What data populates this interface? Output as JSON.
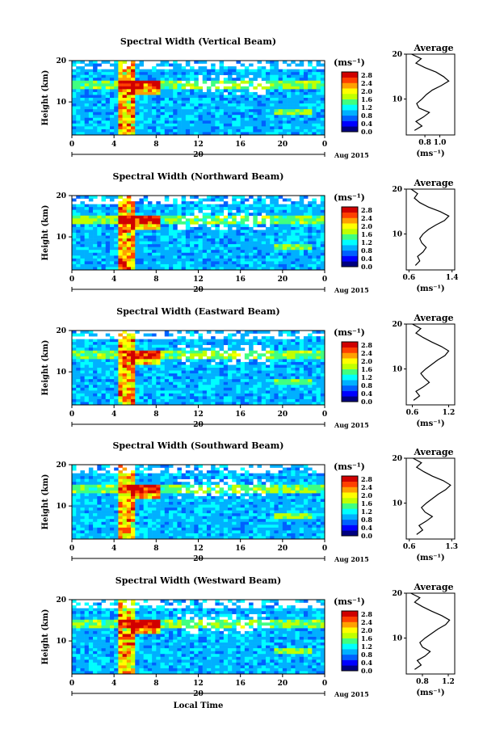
{
  "chart_data": [
    {
      "type": "heatmap",
      "title": "Spectral Width (Vertical Beam)",
      "ylabel": "Height (km)",
      "yticks": [
        "20",
        "10"
      ],
      "ylim": [
        2,
        20
      ],
      "xticks": [
        "0",
        "4",
        "8",
        "12",
        "16",
        "20",
        "0"
      ],
      "xlim": [
        0,
        24
      ],
      "date_day": "20",
      "date_label": "Aug 2015",
      "colorbar_unit": "(ms⁻¹)",
      "colorbar_ticks": [
        "2.8",
        "2.4",
        "2.0",
        "1.6",
        "1.2",
        "0.8",
        "0.4",
        "0.0"
      ],
      "profile": {
        "title": "Average",
        "xticks": [
          "0.8",
          "1.0"
        ],
        "xlim": [
          0.55,
          1.2
        ],
        "xlabel": "(ms⁻¹)",
        "yticks": [
          "20",
          "10"
        ],
        "height_km": [
          3,
          4,
          5,
          6,
          7,
          8,
          9,
          10,
          11,
          12,
          13,
          14,
          15,
          16,
          17,
          18,
          19,
          20
        ],
        "values": [
          0.66,
          0.76,
          0.68,
          0.78,
          0.86,
          0.72,
          0.69,
          0.76,
          0.82,
          0.9,
          1.02,
          1.12,
          1.05,
          0.95,
          0.8,
          0.68,
          0.75,
          0.62
        ]
      }
    },
    {
      "type": "heatmap",
      "title": "Spectral Width (Northward Beam)",
      "ylabel": "Height (km)",
      "yticks": [
        "20",
        "10"
      ],
      "ylim": [
        2,
        20
      ],
      "xticks": [
        "0",
        "4",
        "8",
        "12",
        "16",
        "20",
        "0"
      ],
      "xlim": [
        0,
        24
      ],
      "date_day": "20",
      "date_label": "Aug 2015",
      "colorbar_unit": "(ms⁻¹)",
      "colorbar_ticks": [
        "2.8",
        "2.4",
        "2.0",
        "1.6",
        "1.2",
        "0.8",
        "0.4",
        "0.0"
      ],
      "profile": {
        "title": "Average",
        "xticks": [
          "0.6",
          "1.4"
        ],
        "xlim": [
          0.55,
          1.45
        ],
        "xlabel": "(ms⁻¹)",
        "yticks": [
          "20",
          "10"
        ],
        "height_km": [
          3,
          4,
          5,
          6,
          7,
          8,
          9,
          10,
          11,
          12,
          13,
          14,
          15,
          16,
          17,
          18,
          19,
          20
        ],
        "values": [
          0.72,
          0.8,
          0.76,
          0.86,
          0.92,
          0.84,
          0.8,
          0.86,
          0.96,
          1.1,
          1.26,
          1.34,
          1.18,
          0.96,
          0.8,
          0.7,
          0.76,
          0.64
        ]
      }
    },
    {
      "type": "heatmap",
      "title": "Spectral Width (Eastward Beam)",
      "ylabel": "Height (km)",
      "yticks": [
        "20",
        "10"
      ],
      "ylim": [
        2,
        20
      ],
      "xticks": [
        "0",
        "4",
        "8",
        "12",
        "16",
        "20",
        "0"
      ],
      "xlim": [
        0,
        24
      ],
      "date_day": "20",
      "date_label": "Aug 2015",
      "colorbar_unit": "(ms⁻¹)",
      "colorbar_ticks": [
        "2.8",
        "2.4",
        "2.0",
        "1.6",
        "1.2",
        "0.8",
        "0.4",
        "0.0"
      ],
      "profile": {
        "title": "Average",
        "xticks": [
          "0.6",
          "1.2"
        ],
        "xlim": [
          0.5,
          1.3
        ],
        "xlabel": "(ms⁻¹)",
        "yticks": [
          "20",
          "10"
        ],
        "height_km": [
          3,
          4,
          5,
          6,
          7,
          8,
          9,
          10,
          11,
          12,
          13,
          14,
          15,
          16,
          17,
          18,
          19,
          20
        ],
        "values": [
          0.62,
          0.72,
          0.66,
          0.78,
          0.88,
          0.8,
          0.74,
          0.82,
          0.92,
          1.02,
          1.14,
          1.2,
          1.08,
          0.92,
          0.78,
          0.66,
          0.74,
          0.6
        ]
      }
    },
    {
      "type": "heatmap",
      "title": "Spectral Width (Southward Beam)",
      "ylabel": "Height (km)",
      "yticks": [
        "20",
        "10"
      ],
      "ylim": [
        2,
        20
      ],
      "xticks": [
        "0",
        "4",
        "8",
        "12",
        "16",
        "20",
        "0"
      ],
      "xlim": [
        0,
        24
      ],
      "date_day": "20",
      "date_label": "Aug 2015",
      "colorbar_unit": "(ms⁻¹)",
      "colorbar_ticks": [
        "2.8",
        "2.4",
        "2.0",
        "1.6",
        "1.2",
        "0.8",
        "0.4",
        "0.0"
      ],
      "profile": {
        "title": "Average",
        "xticks": [
          "0.6",
          "1.3"
        ],
        "xlim": [
          0.55,
          1.35
        ],
        "xlabel": "(ms⁻¹)",
        "yticks": [
          "20",
          "10"
        ],
        "height_km": [
          3,
          4,
          5,
          6,
          7,
          8,
          9,
          10,
          11,
          12,
          13,
          14,
          15,
          16,
          17,
          18,
          19,
          20
        ],
        "values": [
          0.72,
          0.82,
          0.76,
          0.88,
          0.98,
          0.86,
          0.8,
          0.88,
          0.98,
          1.08,
          1.2,
          1.28,
          1.16,
          0.98,
          0.84,
          0.72,
          0.8,
          0.66
        ]
      }
    },
    {
      "type": "heatmap",
      "title": "Spectral Width (Westward Beam)",
      "ylabel": "Height (km)",
      "yticks": [
        "20",
        "10"
      ],
      "ylim": [
        2,
        20
      ],
      "xticks": [
        "0",
        "4",
        "8",
        "12",
        "16",
        "20",
        "0"
      ],
      "xlim": [
        0,
        24
      ],
      "date_day": "20",
      "date_label": "Aug 2015",
      "xlabel": "Local Time",
      "colorbar_unit": "(ms⁻¹)",
      "colorbar_ticks": [
        "2.8",
        "2.4",
        "2.0",
        "1.6",
        "1.2",
        "0.8",
        "0.4",
        "0.0"
      ],
      "profile": {
        "title": "Average",
        "xticks": [
          "0.8",
          "1.2"
        ],
        "xlim": [
          0.55,
          1.3
        ],
        "xlabel": "(ms⁻¹)",
        "yticks": [
          "20",
          "10"
        ],
        "height_km": [
          3,
          4,
          5,
          6,
          7,
          8,
          9,
          10,
          11,
          12,
          13,
          14,
          15,
          16,
          17,
          18,
          19,
          20
        ],
        "values": [
          0.68,
          0.78,
          0.72,
          0.84,
          0.92,
          0.8,
          0.76,
          0.84,
          0.94,
          1.04,
          1.16,
          1.22,
          1.1,
          0.94,
          0.8,
          0.68,
          0.76,
          0.62
        ]
      }
    }
  ],
  "colors": {
    "scale": [
      "#000080",
      "#0000ff",
      "#0060ff",
      "#00b0ff",
      "#00ffff",
      "#40ff80",
      "#c0ff00",
      "#ffff00",
      "#ffa000",
      "#ff4000",
      "#d00000"
    ],
    "background": "#ffffff",
    "profile_line": "#000000"
  }
}
